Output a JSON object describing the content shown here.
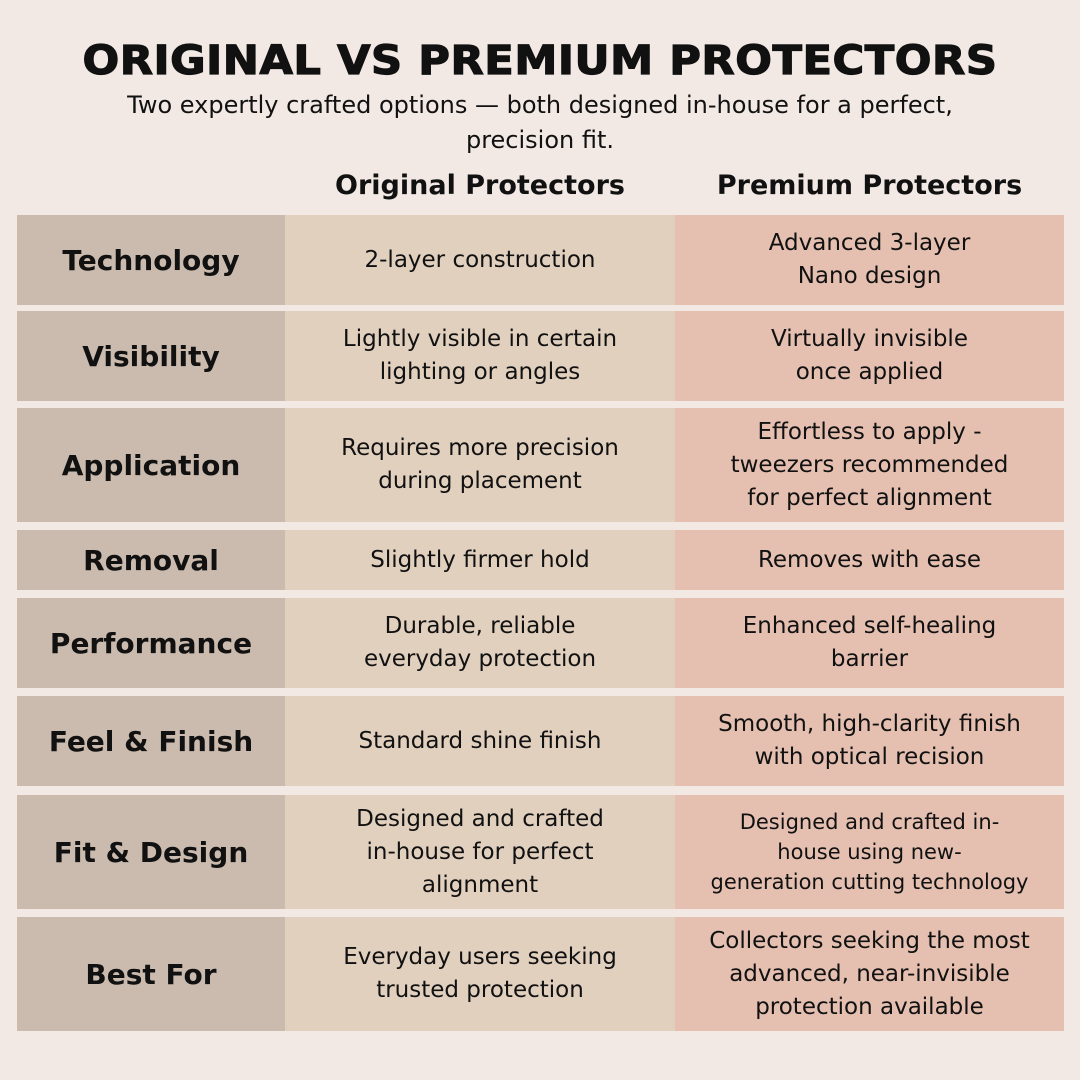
{
  "title": "ORIGINAL VS PREMIUM PROTECTORS",
  "subtitle": "Two expertly crafted options — both designed in-house for a perfect,\nprecision fit.",
  "columns": {
    "original": "Original Protectors",
    "premium": "Premium Protectors"
  },
  "colors": {
    "background": "#f2e9e4",
    "label": "#cbbbae",
    "original": "#e2d0bf",
    "premium": "#e5c0b1"
  },
  "rows": [
    {
      "label": "Technology",
      "original": "2-layer construction",
      "premium": "Advanced 3-layer\nNano design"
    },
    {
      "label": "Visibility",
      "original": "Lightly visible in certain\nlighting or angles",
      "premium": "Virtually invisible\nonce applied"
    },
    {
      "label": "Application",
      "original": "Requires more precision\nduring placement",
      "premium": "Effortless to apply -\ntweezers recommended\nfor perfect alignment"
    },
    {
      "label": "Removal",
      "original": "Slightly firmer hold",
      "premium": "Removes with ease"
    },
    {
      "label": "Performance",
      "original": "Durable, reliable\neveryday protection",
      "premium": "Enhanced self-healing\nbarrier"
    },
    {
      "label": "Feel & Finish",
      "original": "Standard shine finish",
      "premium": "Smooth, high-clarity finish\nwith optical recision"
    },
    {
      "label": "Fit & Design",
      "original": "Designed and crafted\nin-house for perfect\nalignment",
      "premium": "Designed and crafted in-\nhouse using new-\ngeneration cutting technology"
    },
    {
      "label": "Best For",
      "original": "Everyday users seeking\ntrusted protection",
      "premium": "Collectors seeking the most\nadvanced, near-invisible\nprotection available"
    }
  ]
}
